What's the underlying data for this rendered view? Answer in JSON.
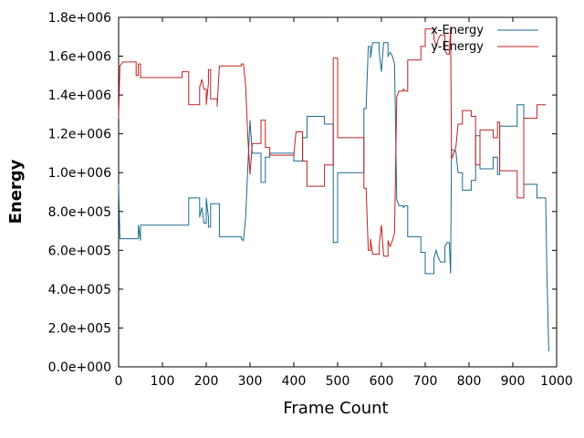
{
  "chart_data": {
    "type": "line",
    "title": "",
    "xlabel": "Frame Count",
    "ylabel": "Energy",
    "xlim": [
      0,
      1000
    ],
    "ylim": [
      0,
      1800000
    ],
    "xticks": [
      0,
      100,
      200,
      300,
      400,
      500,
      600,
      700,
      800,
      900,
      1000
    ],
    "xtick_labels": [
      "0",
      "100",
      "200",
      "300",
      "400",
      "500",
      "600",
      "700",
      "800",
      "900",
      "1000"
    ],
    "yticks": [
      0,
      200000,
      400000,
      600000,
      800000,
      1000000,
      1200000,
      1400000,
      1600000,
      1800000
    ],
    "ytick_labels": [
      "0.0e+000",
      "2.0e+005",
      "4.0e+005",
      "6.0e+005",
      "8.0e+005",
      "1.0e+006",
      "1.2e+006",
      "1.4e+006",
      "1.6e+006",
      "1.8e+006"
    ],
    "grid": false,
    "legend_position": "top-right",
    "series": [
      {
        "name": "x-Energy",
        "color": "#1a6a8e",
        "points": [
          [
            0,
            940000
          ],
          [
            3,
            660000
          ],
          [
            45,
            660000
          ],
          [
            45,
            730000
          ],
          [
            50,
            650000
          ],
          [
            50,
            730000
          ],
          [
            160,
            730000
          ],
          [
            160,
            870000
          ],
          [
            185,
            870000
          ],
          [
            185,
            770000
          ],
          [
            190,
            820000
          ],
          [
            195,
            740000
          ],
          [
            200,
            740000
          ],
          [
            200,
            870000
          ],
          [
            205,
            770000
          ],
          [
            205,
            720000
          ],
          [
            210,
            720000
          ],
          [
            210,
            840000
          ],
          [
            230,
            840000
          ],
          [
            230,
            670000
          ],
          [
            280,
            670000
          ],
          [
            280,
            660000
          ],
          [
            285,
            650000
          ],
          [
            290,
            770000
          ],
          [
            295,
            1030000
          ],
          [
            300,
            1270000
          ],
          [
            305,
            1100000
          ],
          [
            325,
            1100000
          ],
          [
            325,
            950000
          ],
          [
            335,
            950000
          ],
          [
            335,
            1080000
          ],
          [
            345,
            1080000
          ],
          [
            345,
            1100000
          ],
          [
            400,
            1100000
          ],
          [
            400,
            1060000
          ],
          [
            420,
            1060000
          ],
          [
            420,
            1180000
          ],
          [
            430,
            1180000
          ],
          [
            430,
            1290000
          ],
          [
            470,
            1290000
          ],
          [
            470,
            1250000
          ],
          [
            490,
            1250000
          ],
          [
            490,
            640000
          ],
          [
            500,
            640000
          ],
          [
            500,
            1000000
          ],
          [
            560,
            1000000
          ],
          [
            560,
            1330000
          ],
          [
            565,
            1330000
          ],
          [
            570,
            1650000
          ],
          [
            575,
            1650000
          ],
          [
            575,
            1590000
          ],
          [
            580,
            1670000
          ],
          [
            595,
            1670000
          ],
          [
            595,
            1620000
          ],
          [
            600,
            1520000
          ],
          [
            605,
            1670000
          ],
          [
            615,
            1670000
          ],
          [
            615,
            1600000
          ],
          [
            620,
            1620000
          ],
          [
            625,
            1600000
          ],
          [
            630,
            1560000
          ],
          [
            635,
            860000
          ],
          [
            640,
            830000
          ],
          [
            650,
            830000
          ],
          [
            650,
            820000
          ],
          [
            655,
            830000
          ],
          [
            660,
            830000
          ],
          [
            660,
            670000
          ],
          [
            690,
            670000
          ],
          [
            690,
            590000
          ],
          [
            700,
            590000
          ],
          [
            700,
            480000
          ],
          [
            720,
            480000
          ],
          [
            720,
            560000
          ],
          [
            725,
            600000
          ],
          [
            730,
            560000
          ],
          [
            735,
            540000
          ],
          [
            745,
            540000
          ],
          [
            745,
            620000
          ],
          [
            750,
            640000
          ],
          [
            755,
            640000
          ],
          [
            758,
            480000
          ],
          [
            760,
            1120000
          ],
          [
            770,
            1110000
          ],
          [
            775,
            1000000
          ],
          [
            785,
            1000000
          ],
          [
            785,
            910000
          ],
          [
            805,
            910000
          ],
          [
            805,
            960000
          ],
          [
            815,
            960000
          ],
          [
            815,
            1190000
          ],
          [
            825,
            1190000
          ],
          [
            825,
            1020000
          ],
          [
            855,
            1020000
          ],
          [
            855,
            1080000
          ],
          [
            865,
            1080000
          ],
          [
            865,
            990000
          ],
          [
            870,
            990000
          ],
          [
            870,
            1240000
          ],
          [
            910,
            1240000
          ],
          [
            910,
            1350000
          ],
          [
            925,
            1350000
          ],
          [
            925,
            940000
          ],
          [
            955,
            940000
          ],
          [
            955,
            870000
          ],
          [
            975,
            870000
          ],
          [
            978,
            470000
          ],
          [
            982,
            80000
          ]
        ]
      },
      {
        "name": "y-Energy",
        "color": "#c02020",
        "points": [
          [
            0,
            1280000
          ],
          [
            3,
            1550000
          ],
          [
            10,
            1570000
          ],
          [
            40,
            1570000
          ],
          [
            40,
            1500000
          ],
          [
            45,
            1500000
          ],
          [
            45,
            1560000
          ],
          [
            50,
            1560000
          ],
          [
            50,
            1490000
          ],
          [
            145,
            1490000
          ],
          [
            145,
            1520000
          ],
          [
            160,
            1520000
          ],
          [
            160,
            1350000
          ],
          [
            185,
            1350000
          ],
          [
            185,
            1440000
          ],
          [
            190,
            1480000
          ],
          [
            195,
            1430000
          ],
          [
            200,
            1430000
          ],
          [
            200,
            1350000
          ],
          [
            205,
            1460000
          ],
          [
            205,
            1530000
          ],
          [
            210,
            1530000
          ],
          [
            210,
            1380000
          ],
          [
            225,
            1380000
          ],
          [
            225,
            1340000
          ],
          [
            230,
            1550000
          ],
          [
            280,
            1550000
          ],
          [
            280,
            1560000
          ],
          [
            285,
            1560000
          ],
          [
            290,
            1450000
          ],
          [
            295,
            1180000
          ],
          [
            300,
            990000
          ],
          [
            305,
            1150000
          ],
          [
            325,
            1150000
          ],
          [
            325,
            1270000
          ],
          [
            335,
            1270000
          ],
          [
            335,
            1130000
          ],
          [
            345,
            1130000
          ],
          [
            345,
            1090000
          ],
          [
            400,
            1090000
          ],
          [
            400,
            1090000
          ],
          [
            405,
            1210000
          ],
          [
            420,
            1210000
          ],
          [
            420,
            1060000
          ],
          [
            430,
            1060000
          ],
          [
            430,
            930000
          ],
          [
            470,
            930000
          ],
          [
            470,
            1040000
          ],
          [
            490,
            1040000
          ],
          [
            490,
            1590000
          ],
          [
            500,
            1590000
          ],
          [
            500,
            1180000
          ],
          [
            560,
            1180000
          ],
          [
            560,
            920000
          ],
          [
            565,
            920000
          ],
          [
            570,
            600000
          ],
          [
            575,
            600000
          ],
          [
            575,
            660000
          ],
          [
            580,
            580000
          ],
          [
            595,
            580000
          ],
          [
            595,
            630000
          ],
          [
            600,
            730000
          ],
          [
            605,
            570000
          ],
          [
            615,
            570000
          ],
          [
            615,
            650000
          ],
          [
            620,
            620000
          ],
          [
            625,
            650000
          ],
          [
            630,
            690000
          ],
          [
            635,
            1390000
          ],
          [
            640,
            1420000
          ],
          [
            650,
            1420000
          ],
          [
            650,
            1430000
          ],
          [
            655,
            1420000
          ],
          [
            660,
            1420000
          ],
          [
            660,
            1580000
          ],
          [
            690,
            1580000
          ],
          [
            690,
            1650000
          ],
          [
            700,
            1650000
          ],
          [
            700,
            1740000
          ],
          [
            720,
            1740000
          ],
          [
            720,
            1690000
          ],
          [
            725,
            1650000
          ],
          [
            730,
            1690000
          ],
          [
            735,
            1710000
          ],
          [
            745,
            1710000
          ],
          [
            745,
            1630000
          ],
          [
            750,
            1610000
          ],
          [
            755,
            1610000
          ],
          [
            758,
            1750000
          ],
          [
            760,
            1070000
          ],
          [
            770,
            1130000
          ],
          [
            775,
            1250000
          ],
          [
            785,
            1250000
          ],
          [
            785,
            1320000
          ],
          [
            805,
            1320000
          ],
          [
            805,
            1290000
          ],
          [
            815,
            1290000
          ],
          [
            815,
            1040000
          ],
          [
            825,
            1040000
          ],
          [
            825,
            1220000
          ],
          [
            855,
            1220000
          ],
          [
            855,
            1180000
          ],
          [
            865,
            1180000
          ],
          [
            865,
            1260000
          ],
          [
            870,
            1260000
          ],
          [
            870,
            1010000
          ],
          [
            910,
            1010000
          ],
          [
            910,
            870000
          ],
          [
            925,
            870000
          ],
          [
            925,
            1280000
          ],
          [
            955,
            1280000
          ],
          [
            955,
            1350000
          ],
          [
            975,
            1350000
          ]
        ]
      }
    ]
  }
}
